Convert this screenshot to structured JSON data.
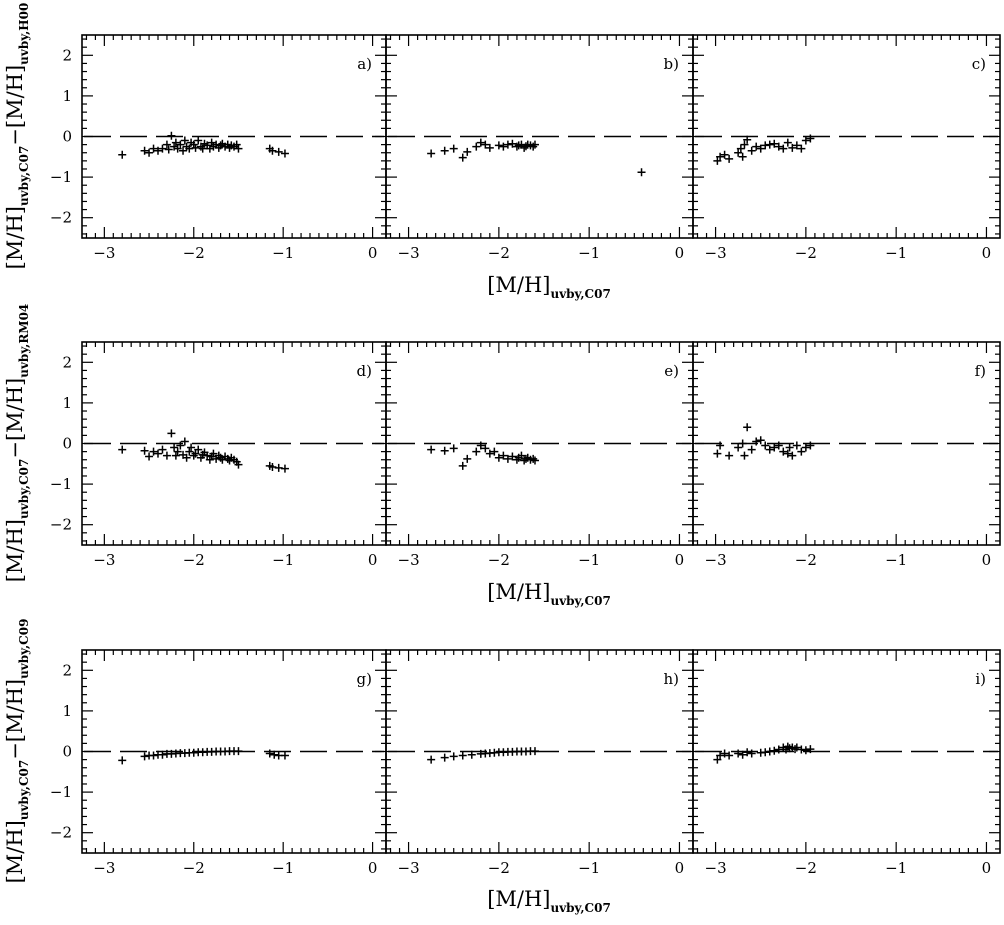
{
  "figure": {
    "x_ticks": [
      "−3",
      "−2",
      "−1",
      "0"
    ],
    "y_ticks": [
      "2",
      "1",
      "0",
      "−1",
      "−2"
    ],
    "xlim": [
      -3.25,
      0.15
    ],
    "ylim": [
      -2.5,
      2.5
    ],
    "reference_line": {
      "y": 0,
      "style": "dashed"
    },
    "xlabel_main": "[M/H]",
    "xlabel_sub": "uvby,C07",
    "ylabel_main_left": "[M/H]",
    "ylabel_sub_left": "uvby,C07",
    "ylabel_minus": "−",
    "ylabel_main_right": "[M/H]",
    "row_ylabel_subs": [
      "uvby,H00",
      "uvby,RM04",
      "uvby,C09"
    ],
    "marker": "+",
    "marker_color": "#000000"
  },
  "chart_data": [
    {
      "type": "scatter",
      "label": "a)",
      "row": 0,
      "col": 0,
      "points": [
        [
          -2.8,
          -0.45
        ],
        [
          -2.55,
          -0.35
        ],
        [
          -2.5,
          -0.4
        ],
        [
          -2.45,
          -0.3
        ],
        [
          -2.4,
          -0.35
        ],
        [
          -2.35,
          -0.3
        ],
        [
          -2.3,
          -0.2
        ],
        [
          -2.28,
          -0.32
        ],
        [
          -2.25,
          0.02
        ],
        [
          -2.22,
          -0.25
        ],
        [
          -2.2,
          -0.15
        ],
        [
          -2.18,
          -0.3
        ],
        [
          -2.15,
          -0.2
        ],
        [
          -2.12,
          -0.35
        ],
        [
          -2.1,
          -0.1
        ],
        [
          -2.08,
          -0.25
        ],
        [
          -2.05,
          -0.3
        ],
        [
          -2.03,
          -0.15
        ],
        [
          -2.0,
          -0.2
        ],
        [
          -1.98,
          -0.28
        ],
        [
          -1.95,
          -0.1
        ],
        [
          -1.92,
          -0.25
        ],
        [
          -1.9,
          -0.3
        ],
        [
          -1.88,
          -0.18
        ],
        [
          -1.85,
          -0.22
        ],
        [
          -1.82,
          -0.3
        ],
        [
          -1.8,
          -0.15
        ],
        [
          -1.78,
          -0.25
        ],
        [
          -1.75,
          -0.2
        ],
        [
          -1.72,
          -0.28
        ],
        [
          -1.7,
          -0.22
        ],
        [
          -1.68,
          -0.18
        ],
        [
          -1.65,
          -0.25
        ],
        [
          -1.62,
          -0.2
        ],
        [
          -1.6,
          -0.28
        ],
        [
          -1.58,
          -0.22
        ],
        [
          -1.55,
          -0.25
        ],
        [
          -1.52,
          -0.2
        ],
        [
          -1.5,
          -0.3
        ],
        [
          -1.15,
          -0.3
        ],
        [
          -1.12,
          -0.35
        ],
        [
          -1.05,
          -0.38
        ],
        [
          -0.98,
          -0.42
        ]
      ]
    },
    {
      "type": "scatter",
      "label": "b)",
      "row": 0,
      "col": 1,
      "points": [
        [
          -2.75,
          -0.42
        ],
        [
          -2.6,
          -0.35
        ],
        [
          -2.5,
          -0.3
        ],
        [
          -2.4,
          -0.52
        ],
        [
          -2.35,
          -0.38
        ],
        [
          -2.25,
          -0.25
        ],
        [
          -2.2,
          -0.15
        ],
        [
          -2.15,
          -0.2
        ],
        [
          -2.1,
          -0.28
        ],
        [
          -2.0,
          -0.22
        ],
        [
          -1.95,
          -0.25
        ],
        [
          -1.9,
          -0.2
        ],
        [
          -1.85,
          -0.18
        ],
        [
          -1.8,
          -0.25
        ],
        [
          -1.78,
          -0.22
        ],
        [
          -1.75,
          -0.2
        ],
        [
          -1.72,
          -0.28
        ],
        [
          -1.7,
          -0.24
        ],
        [
          -1.68,
          -0.2
        ],
        [
          -1.65,
          -0.22
        ],
        [
          -1.62,
          -0.25
        ],
        [
          -1.6,
          -0.2
        ],
        [
          -0.42,
          -0.88
        ]
      ]
    },
    {
      "type": "scatter",
      "label": "c)",
      "row": 0,
      "col": 2,
      "points": [
        [
          -2.98,
          -0.6
        ],
        [
          -2.95,
          -0.5
        ],
        [
          -2.9,
          -0.45
        ],
        [
          -2.85,
          -0.55
        ],
        [
          -2.75,
          -0.4
        ],
        [
          -2.72,
          -0.3
        ],
        [
          -2.7,
          -0.5
        ],
        [
          -2.68,
          -0.2
        ],
        [
          -2.65,
          -0.08
        ],
        [
          -2.6,
          -0.35
        ],
        [
          -2.55,
          -0.25
        ],
        [
          -2.5,
          -0.3
        ],
        [
          -2.45,
          -0.22
        ],
        [
          -2.4,
          -0.2
        ],
        [
          -2.35,
          -0.18
        ],
        [
          -2.3,
          -0.25
        ],
        [
          -2.25,
          -0.3
        ],
        [
          -2.2,
          -0.15
        ],
        [
          -2.15,
          -0.28
        ],
        [
          -2.1,
          -0.22
        ],
        [
          -2.05,
          -0.3
        ],
        [
          -2.0,
          -0.1
        ],
        [
          -1.95,
          -0.05
        ]
      ]
    },
    {
      "type": "scatter",
      "label": "d)",
      "row": 1,
      "col": 0,
      "points": [
        [
          -2.8,
          -0.15
        ],
        [
          -2.55,
          -0.18
        ],
        [
          -2.5,
          -0.32
        ],
        [
          -2.45,
          -0.2
        ],
        [
          -2.4,
          -0.25
        ],
        [
          -2.35,
          -0.15
        ],
        [
          -2.3,
          -0.3
        ],
        [
          -2.25,
          0.25
        ],
        [
          -2.22,
          -0.1
        ],
        [
          -2.2,
          -0.3
        ],
        [
          -2.18,
          -0.2
        ],
        [
          -2.15,
          -0.05
        ],
        [
          -2.12,
          -0.28
        ],
        [
          -2.1,
          0.05
        ],
        [
          -2.08,
          -0.35
        ],
        [
          -2.05,
          -0.2
        ],
        [
          -2.03,
          -0.1
        ],
        [
          -2.0,
          -0.3
        ],
        [
          -1.98,
          -0.25
        ],
        [
          -1.95,
          -0.15
        ],
        [
          -1.92,
          -0.35
        ],
        [
          -1.9,
          -0.28
        ],
        [
          -1.88,
          -0.22
        ],
        [
          -1.85,
          -0.3
        ],
        [
          -1.82,
          -0.4
        ],
        [
          -1.8,
          -0.32
        ],
        [
          -1.78,
          -0.25
        ],
        [
          -1.75,
          -0.38
        ],
        [
          -1.72,
          -0.3
        ],
        [
          -1.7,
          -0.35
        ],
        [
          -1.68,
          -0.4
        ],
        [
          -1.65,
          -0.32
        ],
        [
          -1.62,
          -0.38
        ],
        [
          -1.6,
          -0.42
        ],
        [
          -1.58,
          -0.35
        ],
        [
          -1.55,
          -0.4
        ],
        [
          -1.52,
          -0.45
        ],
        [
          -1.5,
          -0.52
        ],
        [
          -1.15,
          -0.55
        ],
        [
          -1.12,
          -0.58
        ],
        [
          -1.05,
          -0.6
        ],
        [
          -0.98,
          -0.62
        ]
      ]
    },
    {
      "type": "scatter",
      "label": "e)",
      "row": 1,
      "col": 1,
      "points": [
        [
          -2.75,
          -0.15
        ],
        [
          -2.6,
          -0.18
        ],
        [
          -2.5,
          -0.12
        ],
        [
          -2.4,
          -0.55
        ],
        [
          -2.35,
          -0.38
        ],
        [
          -2.25,
          -0.2
        ],
        [
          -2.2,
          -0.05
        ],
        [
          -2.15,
          -0.12
        ],
        [
          -2.1,
          -0.25
        ],
        [
          -2.05,
          -0.2
        ],
        [
          -2.0,
          -0.35
        ],
        [
          -1.95,
          -0.3
        ],
        [
          -1.9,
          -0.38
        ],
        [
          -1.85,
          -0.32
        ],
        [
          -1.8,
          -0.4
        ],
        [
          -1.78,
          -0.35
        ],
        [
          -1.75,
          -0.3
        ],
        [
          -1.72,
          -0.42
        ],
        [
          -1.7,
          -0.38
        ],
        [
          -1.68,
          -0.35
        ],
        [
          -1.65,
          -0.4
        ],
        [
          -1.62,
          -0.38
        ],
        [
          -1.6,
          -0.42
        ]
      ]
    },
    {
      "type": "scatter",
      "label": "f)",
      "row": 1,
      "col": 2,
      "points": [
        [
          -2.98,
          -0.25
        ],
        [
          -2.95,
          -0.05
        ],
        [
          -2.85,
          -0.3
        ],
        [
          -2.75,
          -0.1
        ],
        [
          -2.7,
          0.0
        ],
        [
          -2.68,
          -0.3
        ],
        [
          -2.65,
          0.4
        ],
        [
          -2.6,
          -0.15
        ],
        [
          -2.55,
          0.05
        ],
        [
          -2.5,
          0.08
        ],
        [
          -2.45,
          -0.05
        ],
        [
          -2.4,
          -0.15
        ],
        [
          -2.35,
          -0.1
        ],
        [
          -2.3,
          -0.05
        ],
        [
          -2.25,
          -0.2
        ],
        [
          -2.2,
          -0.25
        ],
        [
          -2.18,
          -0.1
        ],
        [
          -2.15,
          -0.3
        ],
        [
          -2.1,
          -0.05
        ],
        [
          -2.05,
          -0.2
        ],
        [
          -2.0,
          -0.1
        ],
        [
          -1.95,
          -0.05
        ]
      ]
    },
    {
      "type": "scatter",
      "label": "g)",
      "row": 2,
      "col": 0,
      "points": [
        [
          -2.8,
          -0.22
        ],
        [
          -2.55,
          -0.12
        ],
        [
          -2.5,
          -0.1
        ],
        [
          -2.45,
          -0.1
        ],
        [
          -2.4,
          -0.08
        ],
        [
          -2.35,
          -0.08
        ],
        [
          -2.3,
          -0.06
        ],
        [
          -2.25,
          -0.06
        ],
        [
          -2.2,
          -0.05
        ],
        [
          -2.15,
          -0.04
        ],
        [
          -2.1,
          -0.04
        ],
        [
          -2.05,
          -0.03
        ],
        [
          -2.0,
          -0.03
        ],
        [
          -1.95,
          -0.02
        ],
        [
          -1.9,
          -0.02
        ],
        [
          -1.85,
          -0.01
        ],
        [
          -1.8,
          -0.01
        ],
        [
          -1.75,
          0.0
        ],
        [
          -1.7,
          0.0
        ],
        [
          -1.65,
          0.0
        ],
        [
          -1.6,
          0.01
        ],
        [
          -1.55,
          0.01
        ],
        [
          -1.5,
          0.01
        ],
        [
          -1.15,
          -0.05
        ],
        [
          -1.1,
          -0.08
        ],
        [
          -1.05,
          -0.1
        ],
        [
          -0.98,
          -0.1
        ]
      ]
    },
    {
      "type": "scatter",
      "label": "h)",
      "row": 2,
      "col": 1,
      "points": [
        [
          -2.75,
          -0.2
        ],
        [
          -2.6,
          -0.15
        ],
        [
          -2.5,
          -0.12
        ],
        [
          -2.4,
          -0.1
        ],
        [
          -2.3,
          -0.08
        ],
        [
          -2.2,
          -0.06
        ],
        [
          -2.15,
          -0.05
        ],
        [
          -2.1,
          -0.04
        ],
        [
          -2.05,
          -0.03
        ],
        [
          -2.0,
          -0.02
        ],
        [
          -1.95,
          -0.02
        ],
        [
          -1.9,
          -0.01
        ],
        [
          -1.85,
          -0.01
        ],
        [
          -1.8,
          0.0
        ],
        [
          -1.75,
          0.0
        ],
        [
          -1.7,
          0.0
        ],
        [
          -1.65,
          0.01
        ],
        [
          -1.6,
          0.01
        ]
      ]
    },
    {
      "type": "scatter",
      "label": "i)",
      "row": 2,
      "col": 2,
      "points": [
        [
          -2.98,
          -0.2
        ],
        [
          -2.95,
          -0.1
        ],
        [
          -2.9,
          -0.05
        ],
        [
          -2.85,
          -0.1
        ],
        [
          -2.75,
          -0.05
        ],
        [
          -2.7,
          -0.08
        ],
        [
          -2.65,
          -0.02
        ],
        [
          -2.6,
          -0.05
        ],
        [
          -2.5,
          -0.03
        ],
        [
          -2.45,
          -0.02
        ],
        [
          -2.4,
          0.0
        ],
        [
          -2.35,
          0.02
        ],
        [
          -2.3,
          0.05
        ],
        [
          -2.25,
          0.1
        ],
        [
          -2.22,
          0.05
        ],
        [
          -2.2,
          0.12
        ],
        [
          -2.18,
          0.08
        ],
        [
          -2.15,
          0.1
        ],
        [
          -2.12,
          0.06
        ],
        [
          -2.1,
          0.1
        ],
        [
          -2.05,
          0.05
        ],
        [
          -2.0,
          0.03
        ],
        [
          -1.95,
          0.06
        ]
      ]
    }
  ]
}
